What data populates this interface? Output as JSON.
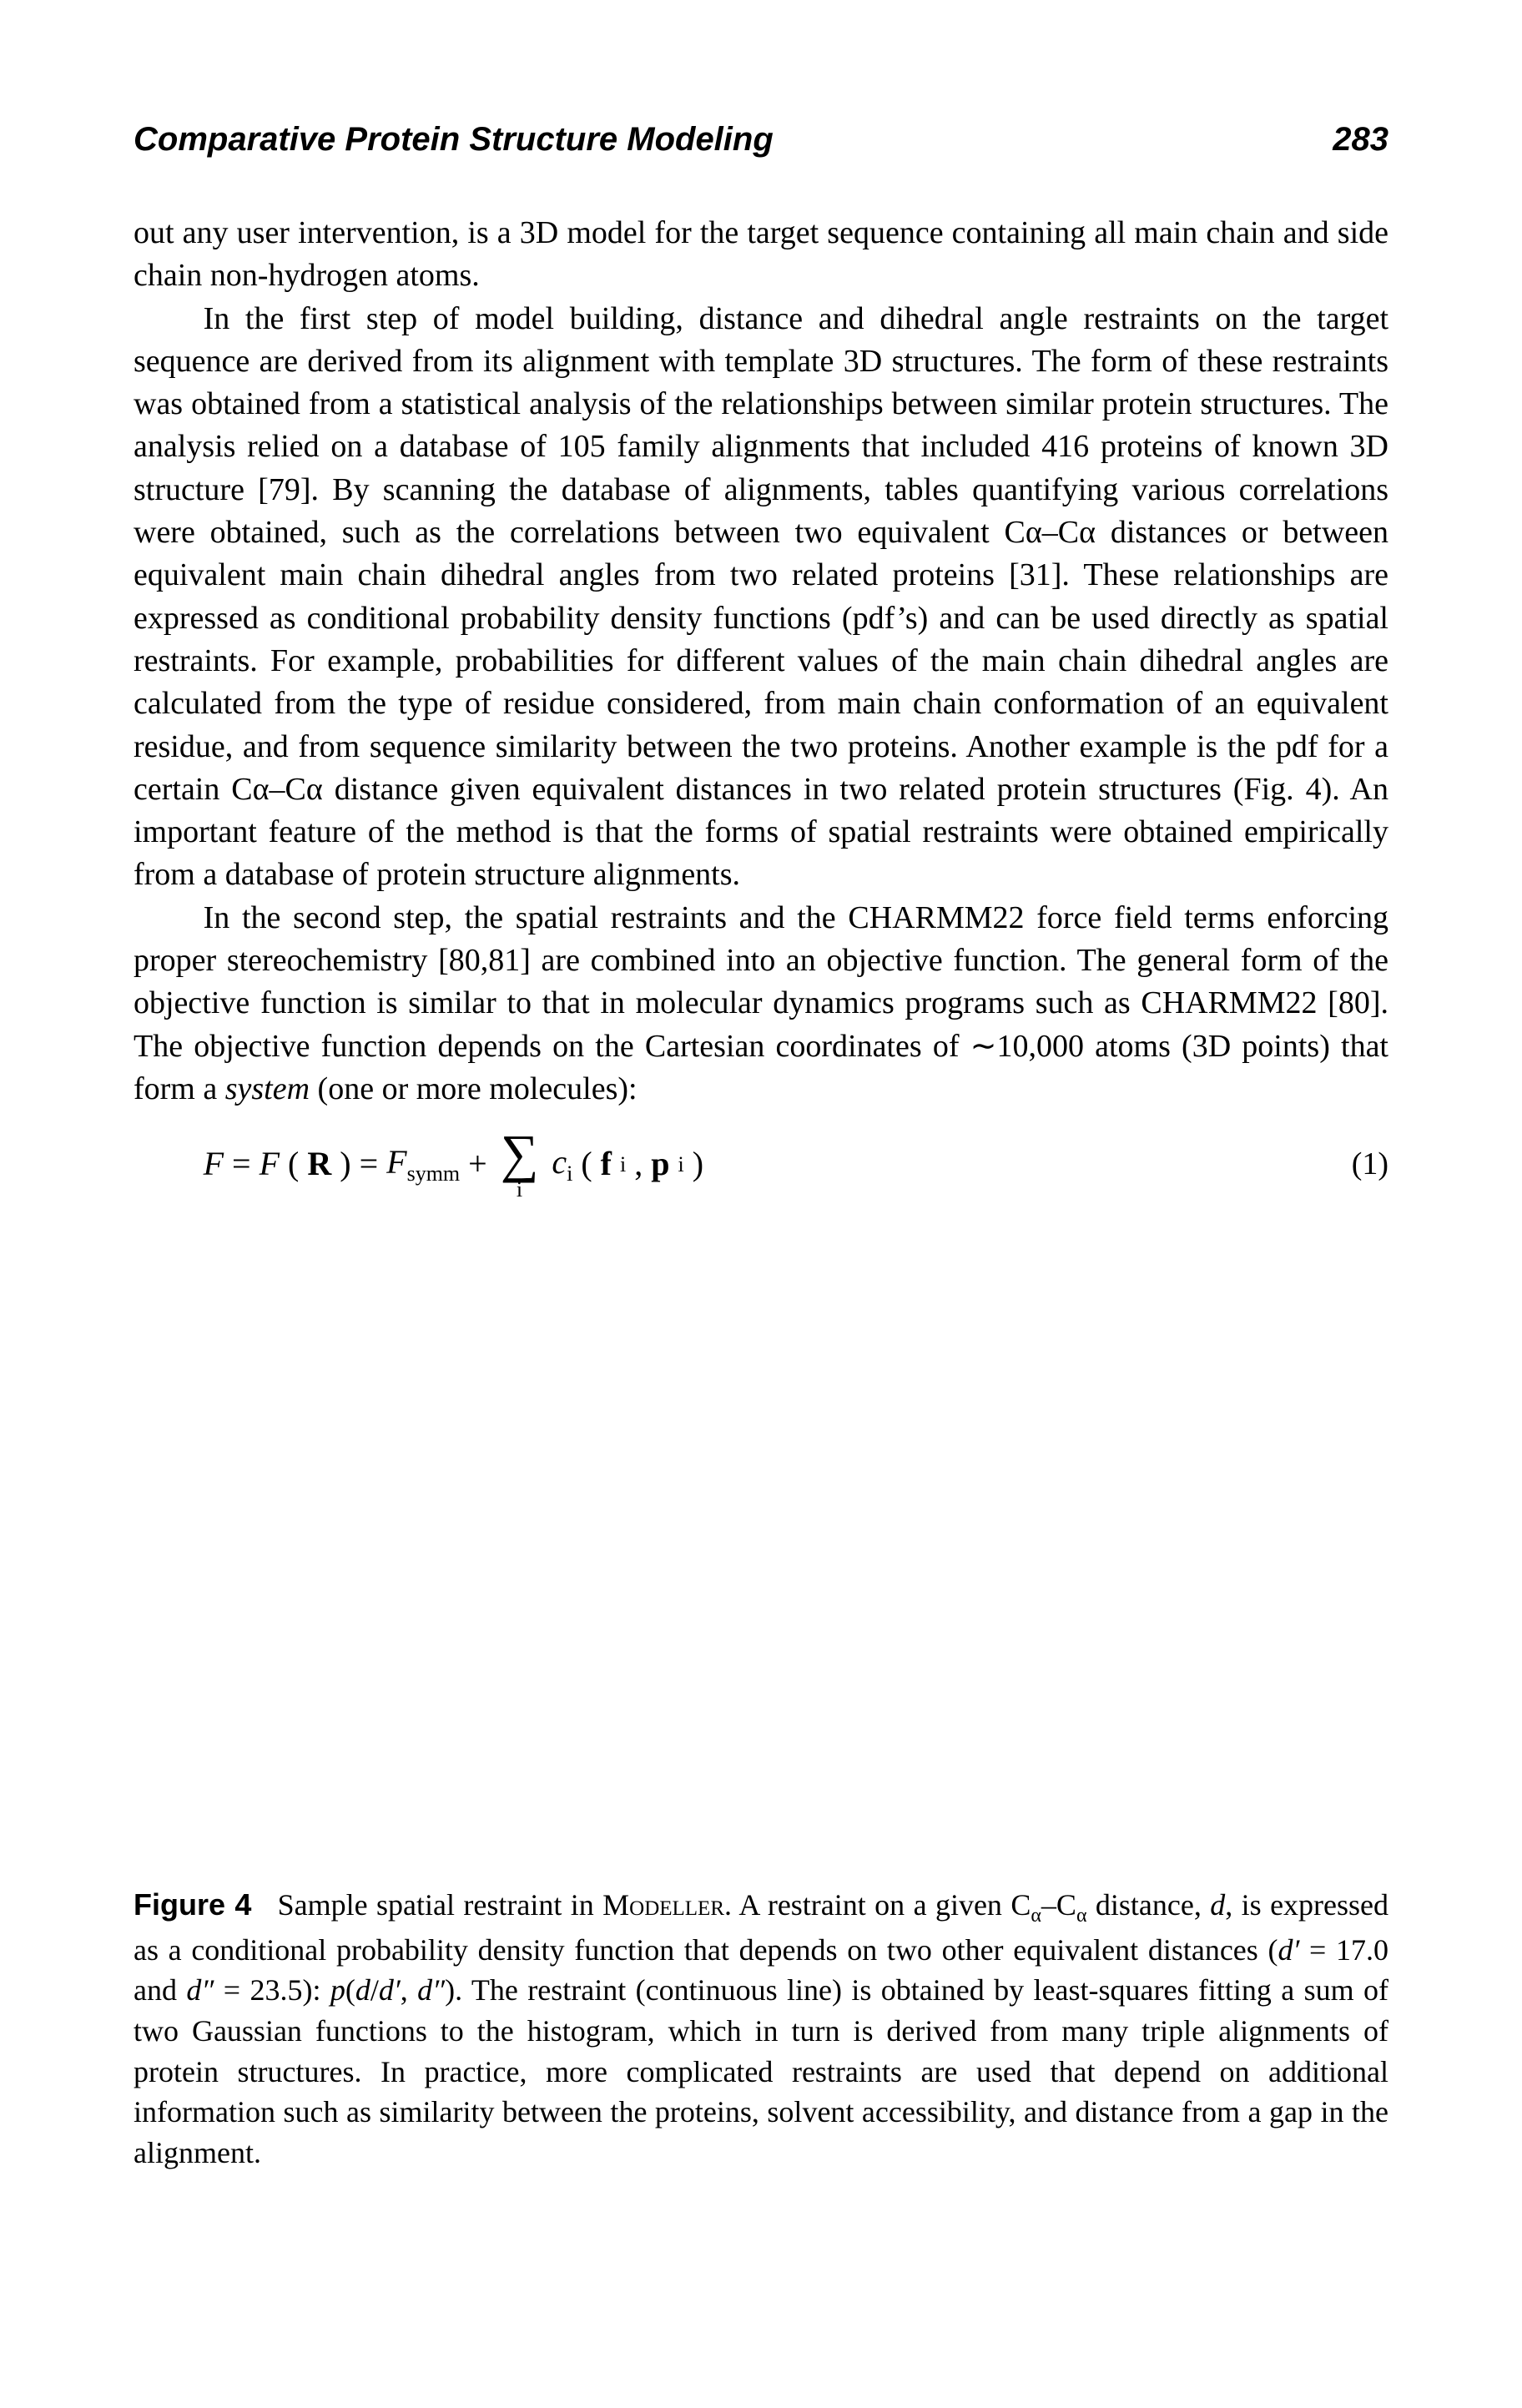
{
  "header": {
    "title": "Comparative Protein Structure Modeling",
    "page_number": "283"
  },
  "paragraphs": {
    "p1": "out any user intervention, is a 3D model for the target sequence containing all main chain and side chain non-hydrogen atoms.",
    "p2": "In the first step of model building, distance and dihedral angle restraints on the target sequence are derived from its alignment with template 3D structures. The form of these restraints was obtained from a statistical analysis of the relationships between similar protein structures. The analysis relied on a database of 105 family alignments that included 416 proteins of known 3D structure [79]. By scanning the database of alignments, tables quantifying various correlations were obtained, such as the correlations between two equivalent Cα–Cα distances or between equivalent main chain dihedral angles from two related proteins [31]. These relationships are expressed as conditional probability density functions (pdf’s) and can be used directly as spatial restraints. For example, probabilities for different values of the main chain dihedral angles are calculated from the type of residue considered, from main chain conformation of an equivalent residue, and from sequence similarity between the two proteins. Another example is the pdf for a certain Cα–Cα distance given equivalent distances in two related protein structures (Fig. 4). An important feature of the method is that the forms of spatial restraints were obtained empirically from a database of protein structure alignments.",
    "p3_prefix": "In the second step, the spatial restraints and the CHARMM22 force field terms enforcing proper stereochemistry [80,81] are combined into an objective function. The general form of the objective function is similar to that in molecular dynamics programs such as CHARMM22 [80]. The objective function depends on the Cartesian coordinates of ∼10,000 atoms (3D points) that form a ",
    "p3_emph": "system",
    "p3_suffix": " (one or more molecules):"
  },
  "equation": {
    "lhs_F": "F",
    "eq1": " = ",
    "F_of_R_F": "F",
    "F_of_R_open": "(",
    "F_of_R_R": "R",
    "F_of_R_close": ")",
    "eq2": " = ",
    "Fsymm_F": "F",
    "Fsymm_sub": "symm",
    "plus": " + ",
    "sigma": "∑",
    "sigma_sub": "i",
    "ci_c": "c",
    "ci_sub": "i",
    "open": "(",
    "fi_f": "f",
    "fi_sub": "i",
    "comma": ", ",
    "pi_p": "p",
    "pi_sub": "i",
    "close": ")",
    "number": "(1)"
  },
  "caption": {
    "label": "Figure 4",
    "text_prefix": "Sample spatial restraint in ",
    "modeller": "Modeller",
    "text_mid1": ". A restraint on a given C",
    "alpha1": "α",
    "dash": "–C",
    "alpha2": "α",
    "text_mid2": " distance, ",
    "d_var": "d",
    "text_mid3": ", is expressed as a conditional probability density function that depends on two other equivalent distances (",
    "dprime1_var": "d′",
    "text_mid4": " = 17.0 and ",
    "dprime2_var": "d″",
    "text_mid5": " = 23.5): ",
    "p_var": "p",
    "text_mid6": "(",
    "d_in": "d",
    "slash": "/",
    "dprime_in": "d′",
    "comma2": ", ",
    "dprime2_in": "d″",
    "text_mid7": "). The restraint (continuous line) is obtained by least-squares fitting a sum of two Gaussian functions to the histogram, which in turn is derived from many triple alignments of protein structures. In practice, more complicated restraints are used that depend on additional information such as similarity between the proteins, solvent accessibility, and distance from a gap in the alignment."
  }
}
